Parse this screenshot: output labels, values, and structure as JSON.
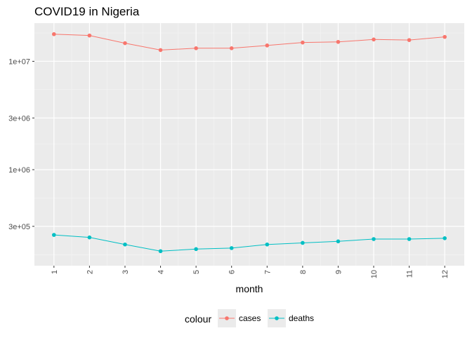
{
  "chart_data": {
    "type": "line",
    "title": "COVID19 in Nigeria",
    "xlabel": "month",
    "ylabel": "",
    "x": [
      1,
      2,
      3,
      4,
      5,
      6,
      7,
      8,
      9,
      10,
      11,
      12
    ],
    "y_scale": "log10",
    "y_ticks": [
      300000,
      1000000,
      3000000,
      10000000
    ],
    "y_tick_labels": [
      "3e+05",
      "1e+06",
      "3e+06",
      "1e+07"
    ],
    "ylim": [
      130000,
      22500000
    ],
    "xlim": [
      0.45,
      12.55
    ],
    "grid": true,
    "legend": {
      "title": "colour",
      "position": "bottom"
    },
    "series": [
      {
        "name": "cases",
        "color": "#F8766D",
        "values": [
          17800000,
          17300000,
          14700000,
          12700000,
          13200000,
          13200000,
          14000000,
          14900000,
          15100000,
          15900000,
          15700000,
          16800000
        ]
      },
      {
        "name": "deaths",
        "color": "#00BFC4",
        "values": [
          250000,
          237000,
          204000,
          177000,
          185000,
          189000,
          204000,
          211000,
          218000,
          229000,
          229000,
          233000
        ]
      }
    ]
  }
}
